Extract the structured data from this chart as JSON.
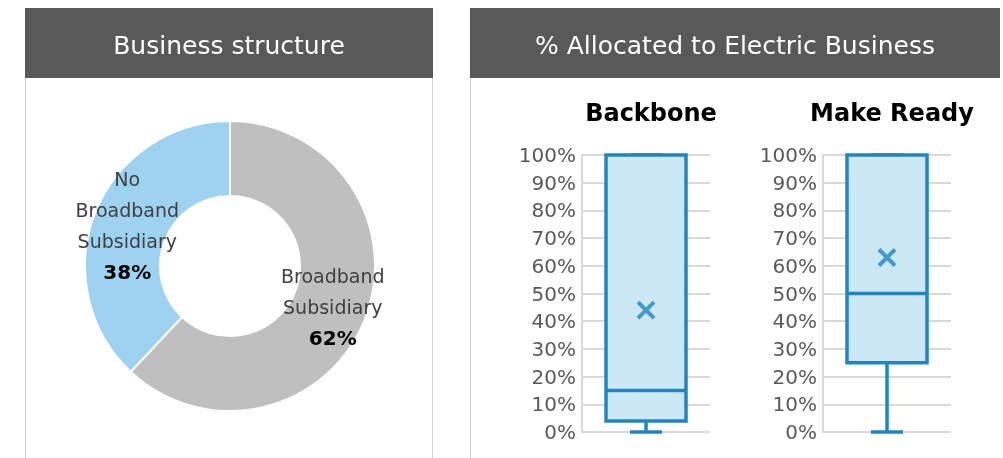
{
  "chart_data": [
    {
      "type": "donut",
      "title": "Business structure",
      "categories": [
        "Broadband Subsidiary",
        "No Broadband Subsidiary"
      ],
      "values": [
        62,
        38
      ],
      "colors": [
        "#bfbfbf",
        "#9dd3f0"
      ],
      "value_labels": [
        "62%",
        "38%"
      ],
      "legend": false
    },
    {
      "type": "box",
      "title": "% Allocated to Electric Business",
      "subtitle": "Backbone",
      "categories": [
        null
      ],
      "boxes": [
        {
          "low": 0,
          "q1": 4,
          "median": 15,
          "q3": 100,
          "high": 100,
          "mean": 44
        }
      ],
      "color": "#1f86c0",
      "ylim": [
        0,
        100
      ],
      "yticks": [
        {
          "value": 0,
          "label": "0%"
        },
        {
          "value": 10,
          "label": "10%"
        },
        {
          "value": 20,
          "label": "20%"
        },
        {
          "value": 30,
          "label": "30%"
        },
        {
          "value": 40,
          "label": "40%"
        },
        {
          "value": 50,
          "label": "50%"
        },
        {
          "value": 60,
          "label": "60%"
        },
        {
          "value": 70,
          "label": "70%"
        },
        {
          "value": 80,
          "label": "80%"
        },
        {
          "value": 90,
          "label": "90%"
        },
        {
          "value": 100,
          "label": "100%"
        }
      ],
      "grid": "y",
      "tick_labels": "y"
    },
    {
      "type": "box",
      "subtitle": "Make Ready",
      "categories": [
        null
      ],
      "boxes": [
        {
          "low": 0,
          "q1": 25,
          "median": 50,
          "q3": 100,
          "high": 100,
          "mean": 63
        }
      ],
      "color": "#1f86c0",
      "ylim": [
        0,
        100
      ],
      "yticks": [
        {
          "value": 0,
          "label": "0%"
        },
        {
          "value": 10,
          "label": "10%"
        },
        {
          "value": 20,
          "label": "20%"
        },
        {
          "value": 30,
          "label": "30%"
        },
        {
          "value": 40,
          "label": "40%"
        },
        {
          "value": 50,
          "label": "50%"
        },
        {
          "value": 60,
          "label": "60%"
        },
        {
          "value": 70,
          "label": "70%"
        },
        {
          "value": 80,
          "label": "80%"
        },
        {
          "value": 90,
          "label": "90%"
        },
        {
          "value": 100,
          "label": "100%"
        }
      ],
      "grid": "y",
      "tick_labels": "y"
    }
  ]
}
